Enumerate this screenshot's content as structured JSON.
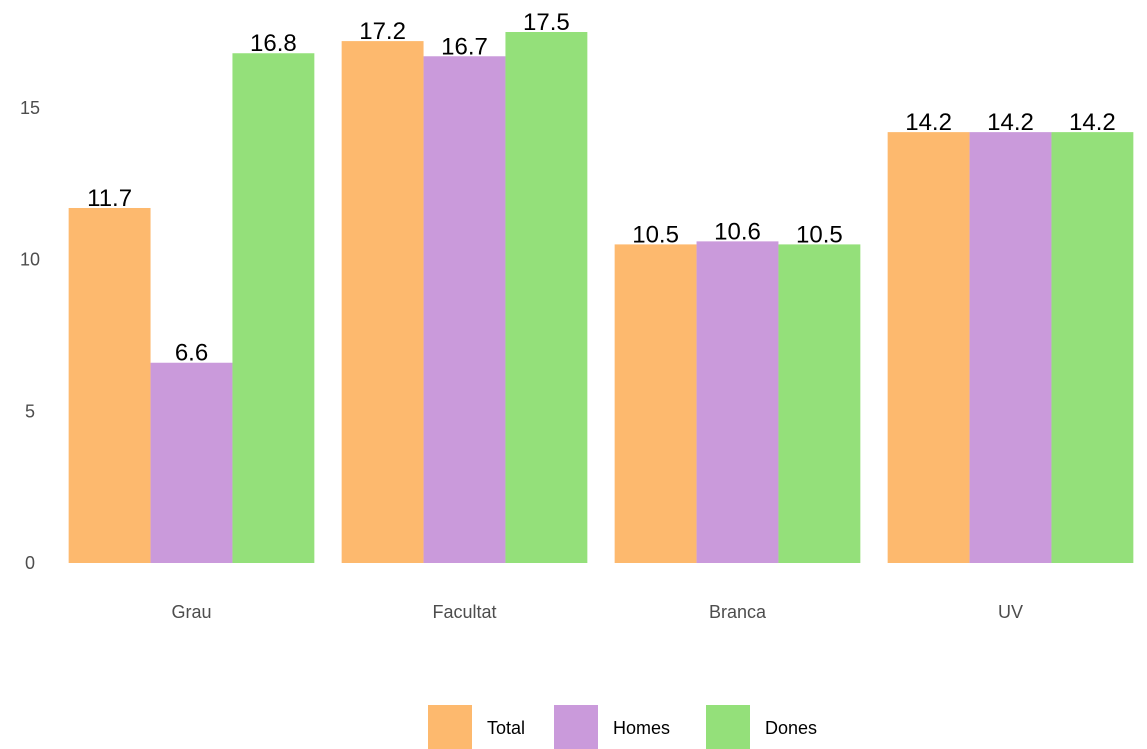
{
  "chart_data": {
    "type": "bar",
    "categories": [
      "Grau",
      "Facultat",
      "Branca",
      "UV"
    ],
    "series": [
      {
        "name": "Total",
        "values": [
          11.7,
          17.2,
          10.5,
          14.2
        ],
        "color": "#FDB96E"
      },
      {
        "name": "Homes",
        "values": [
          6.6,
          16.7,
          10.6,
          14.2
        ],
        "color": "#CA9ADB"
      },
      {
        "name": "Dones",
        "values": [
          16.8,
          17.5,
          10.5,
          14.2
        ],
        "color": "#94E07A"
      }
    ],
    "yticks": [
      0,
      5,
      10,
      15
    ],
    "ylim": [
      0,
      17.5
    ],
    "grid": false,
    "legend_position": "bottom",
    "title": "",
    "xlabel": "",
    "ylabel": ""
  }
}
